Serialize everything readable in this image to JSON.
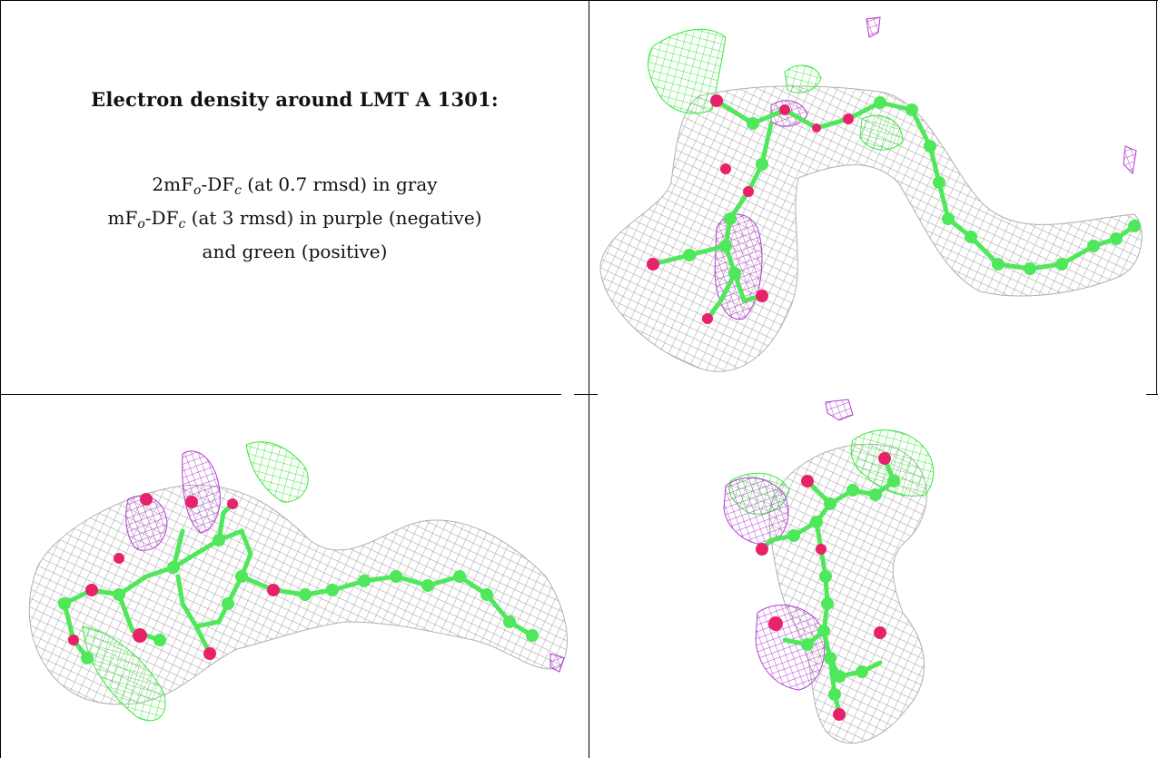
{
  "caption": {
    "title": "Electron density around LMT A 1301:",
    "line1": {
      "a": "2mF",
      "o": "o",
      "b": "-DF",
      "c": "c",
      "rest": " (at 0.7 rmsd) in gray"
    },
    "line2": {
      "a": "mF",
      "o": "o",
      "b": "-DF",
      "c": "c",
      "rest": " (at 3 rmsd) in purple (negative)"
    },
    "line3": "and green (positive)"
  },
  "colors": {
    "map_2fofc": "#9a9a9a",
    "map_fofc_negative": "#b23bd0",
    "map_fofc_positive": "#39e83a",
    "carbon_atom": "#4ee85a",
    "oxygen_atom": "#e8226a",
    "border": "#000000"
  },
  "panels": [
    {
      "name": "density-view-top-right"
    },
    {
      "name": "density-view-bottom-left"
    },
    {
      "name": "density-view-bottom-right"
    }
  ]
}
